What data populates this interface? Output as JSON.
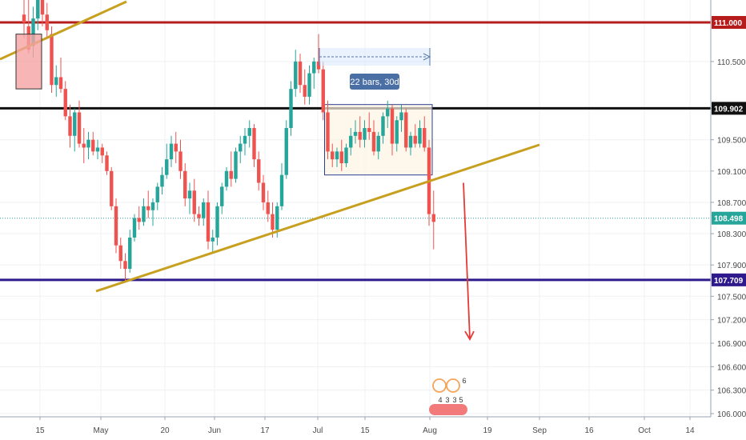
{
  "chart_data": {
    "type": "candlestick",
    "title": "",
    "xlabel": "",
    "ylabel": "",
    "ylim": [
      105.95,
      111.3
    ],
    "grid": true,
    "y_ticks": [
      "106.000",
      "106.300",
      "106.600",
      "106.900",
      "107.200",
      "107.500",
      "107.900",
      "108.300",
      "108.700",
      "109.100",
      "109.500",
      "109.900",
      "110.500"
    ],
    "x_ticks": [
      "15",
      "May",
      "20",
      "Jun",
      "17",
      "Jul",
      "15",
      "Aug",
      "19",
      "Sep",
      "16",
      "Oct",
      "14"
    ],
    "candles_ohlc": [
      [
        111.1,
        111.6,
        110.8,
        111.0
      ],
      [
        110.95,
        111.3,
        110.6,
        110.65
      ],
      [
        110.7,
        111.2,
        110.55,
        111.05
      ],
      [
        111.05,
        111.6,
        110.9,
        111.4
      ],
      [
        111.4,
        111.5,
        110.95,
        111.1
      ],
      [
        111.1,
        111.25,
        110.8,
        110.9
      ],
      [
        110.85,
        110.95,
        110.1,
        110.2
      ],
      [
        110.2,
        110.45,
        110.05,
        110.3
      ],
      [
        110.3,
        110.55,
        110.1,
        110.15
      ],
      [
        110.15,
        110.25,
        109.75,
        109.8
      ],
      [
        109.8,
        109.95,
        109.4,
        109.55
      ],
      [
        109.55,
        109.9,
        109.35,
        109.85
      ],
      [
        109.85,
        110.0,
        109.4,
        109.45
      ],
      [
        109.45,
        109.65,
        109.2,
        109.4
      ],
      [
        109.4,
        109.6,
        109.25,
        109.5
      ],
      [
        109.5,
        109.6,
        109.3,
        109.35
      ],
      [
        109.35,
        109.5,
        109.25,
        109.4
      ],
      [
        109.4,
        109.45,
        109.2,
        109.3
      ],
      [
        109.3,
        109.35,
        109.05,
        109.1
      ],
      [
        109.1,
        109.15,
        108.6,
        108.65
      ],
      [
        108.65,
        108.75,
        108.05,
        108.15
      ],
      [
        108.15,
        108.25,
        107.85,
        107.95
      ],
      [
        107.95,
        108.05,
        107.7,
        107.85
      ],
      [
        107.85,
        108.35,
        107.8,
        108.25
      ],
      [
        108.25,
        108.55,
        108.2,
        108.5
      ],
      [
        108.5,
        108.65,
        108.35,
        108.45
      ],
      [
        108.45,
        108.75,
        108.4,
        108.65
      ],
      [
        108.65,
        108.85,
        108.5,
        108.6
      ],
      [
        108.6,
        108.75,
        108.4,
        108.7
      ],
      [
        108.7,
        108.95,
        108.6,
        108.9
      ],
      [
        108.9,
        109.15,
        108.8,
        109.05
      ],
      [
        109.05,
        109.45,
        109.0,
        109.25
      ],
      [
        109.25,
        109.55,
        109.15,
        109.45
      ],
      [
        109.45,
        109.6,
        109.2,
        109.35
      ],
      [
        109.35,
        109.5,
        109.0,
        109.1
      ],
      [
        109.1,
        109.2,
        108.65,
        108.75
      ],
      [
        108.75,
        108.95,
        108.55,
        108.85
      ],
      [
        108.85,
        109.0,
        108.45,
        108.55
      ],
      [
        108.55,
        108.65,
        108.4,
        108.5
      ],
      [
        108.5,
        108.75,
        108.4,
        108.7
      ],
      [
        108.7,
        108.85,
        108.1,
        108.2
      ],
      [
        108.2,
        108.35,
        108.05,
        108.25
      ],
      [
        108.25,
        108.7,
        108.15,
        108.65
      ],
      [
        108.65,
        108.95,
        108.55,
        108.9
      ],
      [
        108.9,
        109.15,
        108.85,
        109.1
      ],
      [
        109.1,
        109.35,
        108.9,
        109.0
      ],
      [
        109.0,
        109.4,
        108.95,
        109.35
      ],
      [
        109.35,
        109.55,
        109.2,
        109.45
      ],
      [
        109.45,
        109.65,
        109.3,
        109.55
      ],
      [
        109.55,
        109.75,
        109.4,
        109.65
      ],
      [
        109.65,
        109.7,
        109.15,
        109.25
      ],
      [
        109.25,
        109.35,
        108.85,
        108.95
      ],
      [
        108.95,
        109.05,
        108.6,
        108.7
      ],
      [
        108.7,
        108.85,
        108.45,
        108.55
      ],
      [
        108.55,
        108.7,
        108.25,
        108.35
      ],
      [
        108.35,
        108.7,
        108.25,
        108.65
      ],
      [
        108.65,
        109.2,
        108.6,
        109.05
      ],
      [
        109.05,
        109.75,
        109.0,
        109.65
      ],
      [
        109.65,
        110.25,
        109.55,
        110.15
      ],
      [
        110.15,
        110.65,
        110.05,
        110.5
      ],
      [
        110.5,
        110.6,
        110.1,
        110.2
      ],
      [
        110.2,
        110.4,
        109.95,
        110.05
      ],
      [
        110.05,
        110.45,
        109.95,
        110.35
      ],
      [
        110.35,
        110.55,
        110.15,
        110.5
      ],
      [
        110.5,
        110.85,
        110.35,
        110.4
      ],
      [
        110.4,
        110.5,
        109.75,
        109.85
      ],
      [
        109.85,
        110.0,
        109.25,
        109.35
      ],
      [
        109.35,
        109.45,
        109.15,
        109.25
      ],
      [
        109.25,
        109.4,
        109.15,
        109.35
      ],
      [
        109.35,
        109.5,
        109.1,
        109.2
      ],
      [
        109.2,
        109.45,
        109.15,
        109.4
      ],
      [
        109.4,
        109.65,
        109.3,
        109.55
      ],
      [
        109.55,
        109.75,
        109.45,
        109.6
      ],
      [
        109.6,
        109.8,
        109.4,
        109.5
      ],
      [
        109.5,
        109.75,
        109.4,
        109.65
      ],
      [
        109.65,
        109.85,
        109.5,
        109.6
      ],
      [
        109.6,
        109.75,
        109.3,
        109.35
      ],
      [
        109.35,
        109.6,
        109.25,
        109.55
      ],
      [
        109.55,
        109.85,
        109.45,
        109.8
      ],
      [
        109.8,
        110.0,
        109.65,
        109.9
      ],
      [
        109.9,
        109.95,
        109.3,
        109.45
      ],
      [
        109.45,
        109.8,
        109.35,
        109.75
      ],
      [
        109.75,
        109.95,
        109.6,
        109.85
      ],
      [
        109.85,
        109.9,
        109.35,
        109.4
      ],
      [
        109.4,
        109.6,
        109.3,
        109.55
      ],
      [
        109.55,
        109.7,
        109.4,
        109.45
      ],
      [
        109.45,
        109.75,
        109.4,
        109.65
      ],
      [
        109.65,
        109.8,
        109.35,
        109.4
      ],
      [
        109.4,
        109.5,
        108.4,
        108.55
      ],
      [
        108.55,
        108.85,
        108.1,
        108.45
      ]
    ],
    "horizontal_levels": [
      {
        "value": 111.0,
        "label": "111.000",
        "color": "#b71c1c"
      },
      {
        "value": 109.902,
        "label": "109.902",
        "color": "#111111"
      },
      {
        "value": 107.709,
        "label": "107.709",
        "color": "#2e1a8c"
      }
    ],
    "current_price": {
      "value": 108.498,
      "label": "108.498",
      "color": "#26a69a"
    },
    "trendlines": [
      {
        "from": [
          "15",
          110.6
        ],
        "to": [
          "20",
          111.55
        ],
        "color": "#c8a020"
      },
      {
        "from": [
          "May",
          107.55
        ],
        "to": [
          "Sep",
          109.45
        ],
        "color": "#c8a020"
      }
    ],
    "annotations": {
      "range_label": "22 bars, 30d",
      "consolidation_box": {
        "from_candle": 66,
        "to_candle": 88,
        "top": 109.95,
        "bottom": 109.05
      },
      "projection_arrow": {
        "from": 108.95,
        "to": 106.95,
        "color": "#e53935"
      },
      "event_flags": [
        "4",
        "3",
        "3",
        "5",
        "6"
      ]
    },
    "colors": {
      "up": "#26a69a",
      "down": "#ef5350",
      "grid": "#eef0f3",
      "trendline": "#c8a020"
    }
  }
}
